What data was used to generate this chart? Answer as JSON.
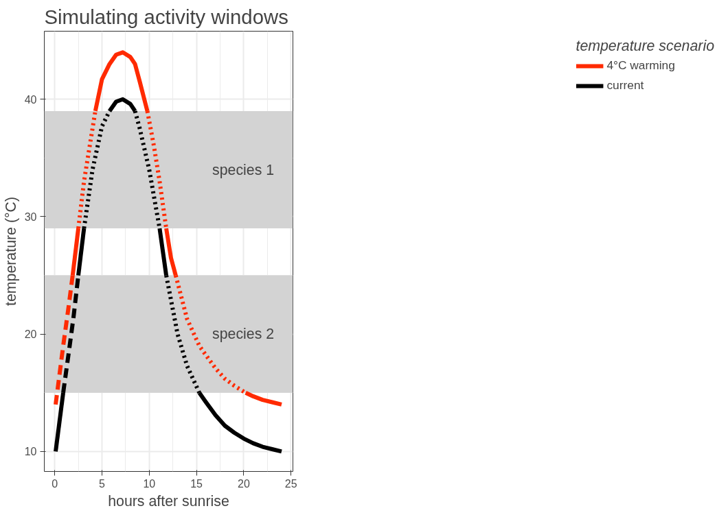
{
  "chart_data": {
    "type": "line",
    "title": "Simulating activity windows",
    "xlabel": "hours after sunrise",
    "ylabel": "temperature (°C)",
    "legend_title": "temperature scenario",
    "legend": "right",
    "grid": true,
    "xlim": [
      -1.1,
      25.2
    ],
    "ylim": [
      8.3,
      45.8
    ],
    "xticks": [
      0,
      5,
      10,
      15,
      20,
      25
    ],
    "yticks": [
      10,
      20,
      30,
      40
    ],
    "bands": [
      {
        "axis": "y",
        "from": 29,
        "to": 39,
        "label": "species 1",
        "color": "#d3d3d3"
      },
      {
        "axis": "y",
        "from": 15,
        "to": 25,
        "label": "species 2",
        "color": "#d3d3d3"
      }
    ],
    "series": [
      {
        "color": "#ff2a00",
        "line_style": "dashed",
        "x": [
          0.1,
          0.9,
          1.5,
          1.9
        ],
        "values": [
          14,
          19,
          22.5,
          25
        ]
      },
      {
        "color": "#ff2a00",
        "line_style": "solid",
        "x": [
          1.9,
          2.5
        ],
        "values": [
          25,
          29
        ]
      },
      {
        "color": "#ff2a00",
        "line_style": "dotted",
        "x": [
          2.5,
          3.1,
          3.7,
          4.3
        ],
        "values": [
          29,
          33,
          36,
          39
        ]
      },
      {
        "name": "4°C warming",
        "color": "#ff2a00",
        "line_style": "solid",
        "x": [
          4.3,
          5,
          5.8,
          6.5,
          7.2,
          8,
          8.5,
          9,
          9.8
        ],
        "values": [
          39,
          41.7,
          43,
          43.8,
          44,
          43.6,
          43,
          41.5,
          39
        ]
      },
      {
        "color": "#ff2a00",
        "line_style": "dotted",
        "x": [
          9.8,
          10.5,
          11.1,
          11.8
        ],
        "values": [
          39,
          36,
          33,
          29
        ]
      },
      {
        "color": "#ff2a00",
        "line_style": "solid",
        "x": [
          11.8,
          12.3,
          12.8
        ],
        "values": [
          29,
          26.5,
          25
        ]
      },
      {
        "color": "#ff2a00",
        "line_style": "dotted",
        "x": [
          12.8,
          14,
          15.3,
          16,
          17,
          18,
          19,
          20.2
        ],
        "values": [
          25,
          21.3,
          19,
          18.2,
          17.1,
          16.2,
          15.6,
          15
        ]
      },
      {
        "color": "#ff2a00",
        "line_style": "solid",
        "x": [
          20.2,
          21,
          22,
          23,
          24
        ],
        "values": [
          15,
          14.7,
          14.4,
          14.2,
          14
        ]
      },
      {
        "color": "#000000",
        "line_style": "solid",
        "x": [
          0.1,
          0.9
        ],
        "values": [
          10,
          15
        ]
      },
      {
        "color": "#000000",
        "line_style": "dashed",
        "x": [
          0.9,
          1.5,
          2.0,
          2.5
        ],
        "values": [
          15,
          18.5,
          21.5,
          25
        ]
      },
      {
        "color": "#000000",
        "line_style": "solid",
        "x": [
          2.5,
          3.1
        ],
        "values": [
          25,
          29
        ]
      },
      {
        "color": "#000000",
        "line_style": "dotted",
        "x": [
          3.1,
          4,
          5,
          5.8
        ],
        "values": [
          29,
          34,
          37.7,
          39
        ]
      },
      {
        "name": "current",
        "color": "#000000",
        "line_style": "solid",
        "x": [
          5.8,
          6.5,
          7.2,
          8,
          8.5
        ],
        "values": [
          39,
          39.8,
          40,
          39.6,
          39
        ]
      },
      {
        "color": "#000000",
        "line_style": "dotted",
        "x": [
          8.5,
          9,
          10,
          11.1
        ],
        "values": [
          39,
          37.5,
          34,
          29
        ]
      },
      {
        "color": "#000000",
        "line_style": "solid",
        "x": [
          11.1,
          11.8
        ],
        "values": [
          29,
          25
        ]
      },
      {
        "color": "#000000",
        "line_style": "dotted",
        "x": [
          11.8,
          13,
          14,
          15.3
        ],
        "values": [
          25,
          20,
          17.3,
          15
        ]
      },
      {
        "color": "#000000",
        "line_style": "solid",
        "x": [
          15.3,
          16,
          17,
          18,
          19,
          20,
          21,
          22,
          23,
          24
        ],
        "values": [
          15,
          14.2,
          13.1,
          12.2,
          11.6,
          11.1,
          10.7,
          10.4,
          10.2,
          10
        ]
      }
    ]
  }
}
